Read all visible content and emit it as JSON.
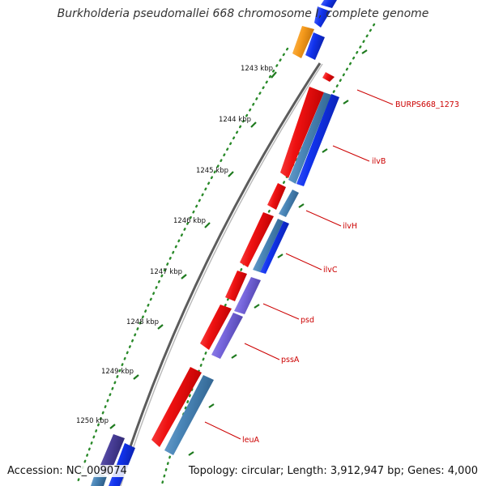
{
  "title": "Burkholderia pseudomallei 668 chromosome I, complete genome",
  "accession": "Accession: NC_009074",
  "topology": "Topology: circular; Length: 3,912,947 bp; Genes: 4,000",
  "ticks": [
    "1243 kbp",
    "1244 kbp",
    "1245 kbp",
    "1246 kbp",
    "1247 kbp",
    "1248 kbp",
    "1249 kbp",
    "1250 kbp"
  ],
  "gene_labels": [
    "BURPS668_1273",
    "ilvB",
    "ilvH",
    "ilvC",
    "psd",
    "pssA",
    "leuA"
  ],
  "colors": {
    "cds_red": "#ee1111",
    "cds_blue": "#1133ee",
    "cds_steel": "#4a86b8",
    "cds_purple": "#7766dd",
    "cds_dark_purple": "#4a3f99",
    "cds_orange": "#f59a1c",
    "backbone": "#777777",
    "tick_green": "#2a8a2a",
    "label_red": "#cc0000"
  }
}
